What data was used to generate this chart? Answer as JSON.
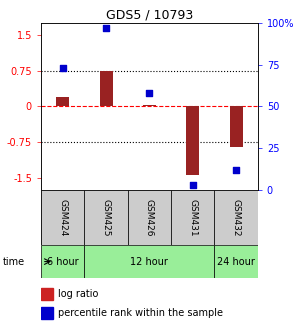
{
  "title": "GDS5 / 10793",
  "samples": [
    "GSM424",
    "GSM425",
    "GSM426",
    "GSM431",
    "GSM432"
  ],
  "log_ratio": [
    0.2,
    0.75,
    0.02,
    -1.45,
    -0.85
  ],
  "percentile_rank": [
    73,
    97,
    58,
    3,
    12
  ],
  "ylim": [
    -1.75,
    1.75
  ],
  "yticks_left": [
    -1.5,
    -0.75,
    0,
    0.75,
    1.5
  ],
  "yticks_right": [
    0,
    25,
    50,
    75,
    100
  ],
  "bar_color": "#992222",
  "dot_color": "#0000cc",
  "sample_box_color": "#cccccc",
  "time_box_color": "#99ee99",
  "bar_width": 0.3,
  "time_defs": [
    {
      "label": "6 hour",
      "cols": [
        0
      ]
    },
    {
      "label": "12 hour",
      "cols": [
        1,
        2,
        3
      ]
    },
    {
      "label": "24 hour",
      "cols": [
        4
      ]
    }
  ]
}
